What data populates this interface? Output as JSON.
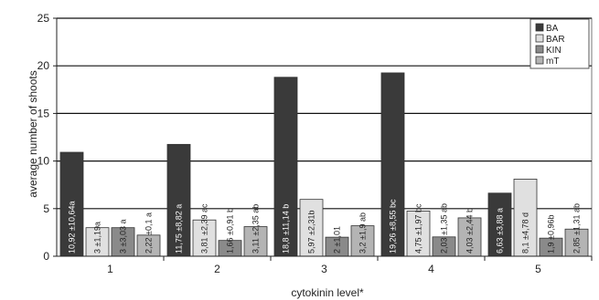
{
  "chart_data": {
    "type": "bar",
    "title": "",
    "xlabel": "cytokinin level*",
    "ylabel": "average number of shoots",
    "ylim": [
      0,
      25
    ],
    "yticks": [
      "0",
      "5",
      "10",
      "15",
      "20",
      "25"
    ],
    "grid": true,
    "legend_position": "top-right",
    "categories": [
      "1",
      "2",
      "3",
      "4",
      "5"
    ],
    "series": [
      {
        "name": "BA",
        "color": "#3a3a3a",
        "values": [
          10.92,
          11.75,
          18.8,
          19.26,
          6.63
        ],
        "labels": [
          "10,92 ±10,64a",
          "11,75 ±8,82 a",
          "18,8 ±11,14 b",
          "19,26 ±8,55 bc",
          "6,63 ±3,88 a"
        ],
        "label_color": "#ffffff"
      },
      {
        "name": "BAR",
        "color": "#e0e0e0",
        "values": [
          3.0,
          3.81,
          5.97,
          4.75,
          8.1
        ],
        "labels": [
          "3 ±1,19a",
          "3,81 ±2,39 ac",
          "5,97 ±2,31b",
          "4,75 ±1,97 bc",
          "8,1 ±4,78 d"
        ],
        "label_color": "#222222"
      },
      {
        "name": "KIN",
        "color": "#8a8a8a",
        "values": [
          3.0,
          1.66,
          2.0,
          2.03,
          1.9
        ],
        "labels": [
          "3 ±3,03 a",
          "1,66 ±0,91 b",
          "2 ±1,01",
          "2,03 ±1,35 ab",
          "1,9 ±0,96b"
        ],
        "label_color": "#222222"
      },
      {
        "name": "mT",
        "color": "#b4b4b4",
        "values": [
          2.22,
          3.11,
          3.2,
          4.03,
          2.85
        ],
        "labels": [
          "2,22 ±0,1 a",
          "3,11 ±2,35 ab",
          "3,2 ±1,9 ab",
          "4,03 ±2,44 b",
          "2,85 ±1,31 ab"
        ],
        "label_color": "#222222"
      }
    ]
  }
}
